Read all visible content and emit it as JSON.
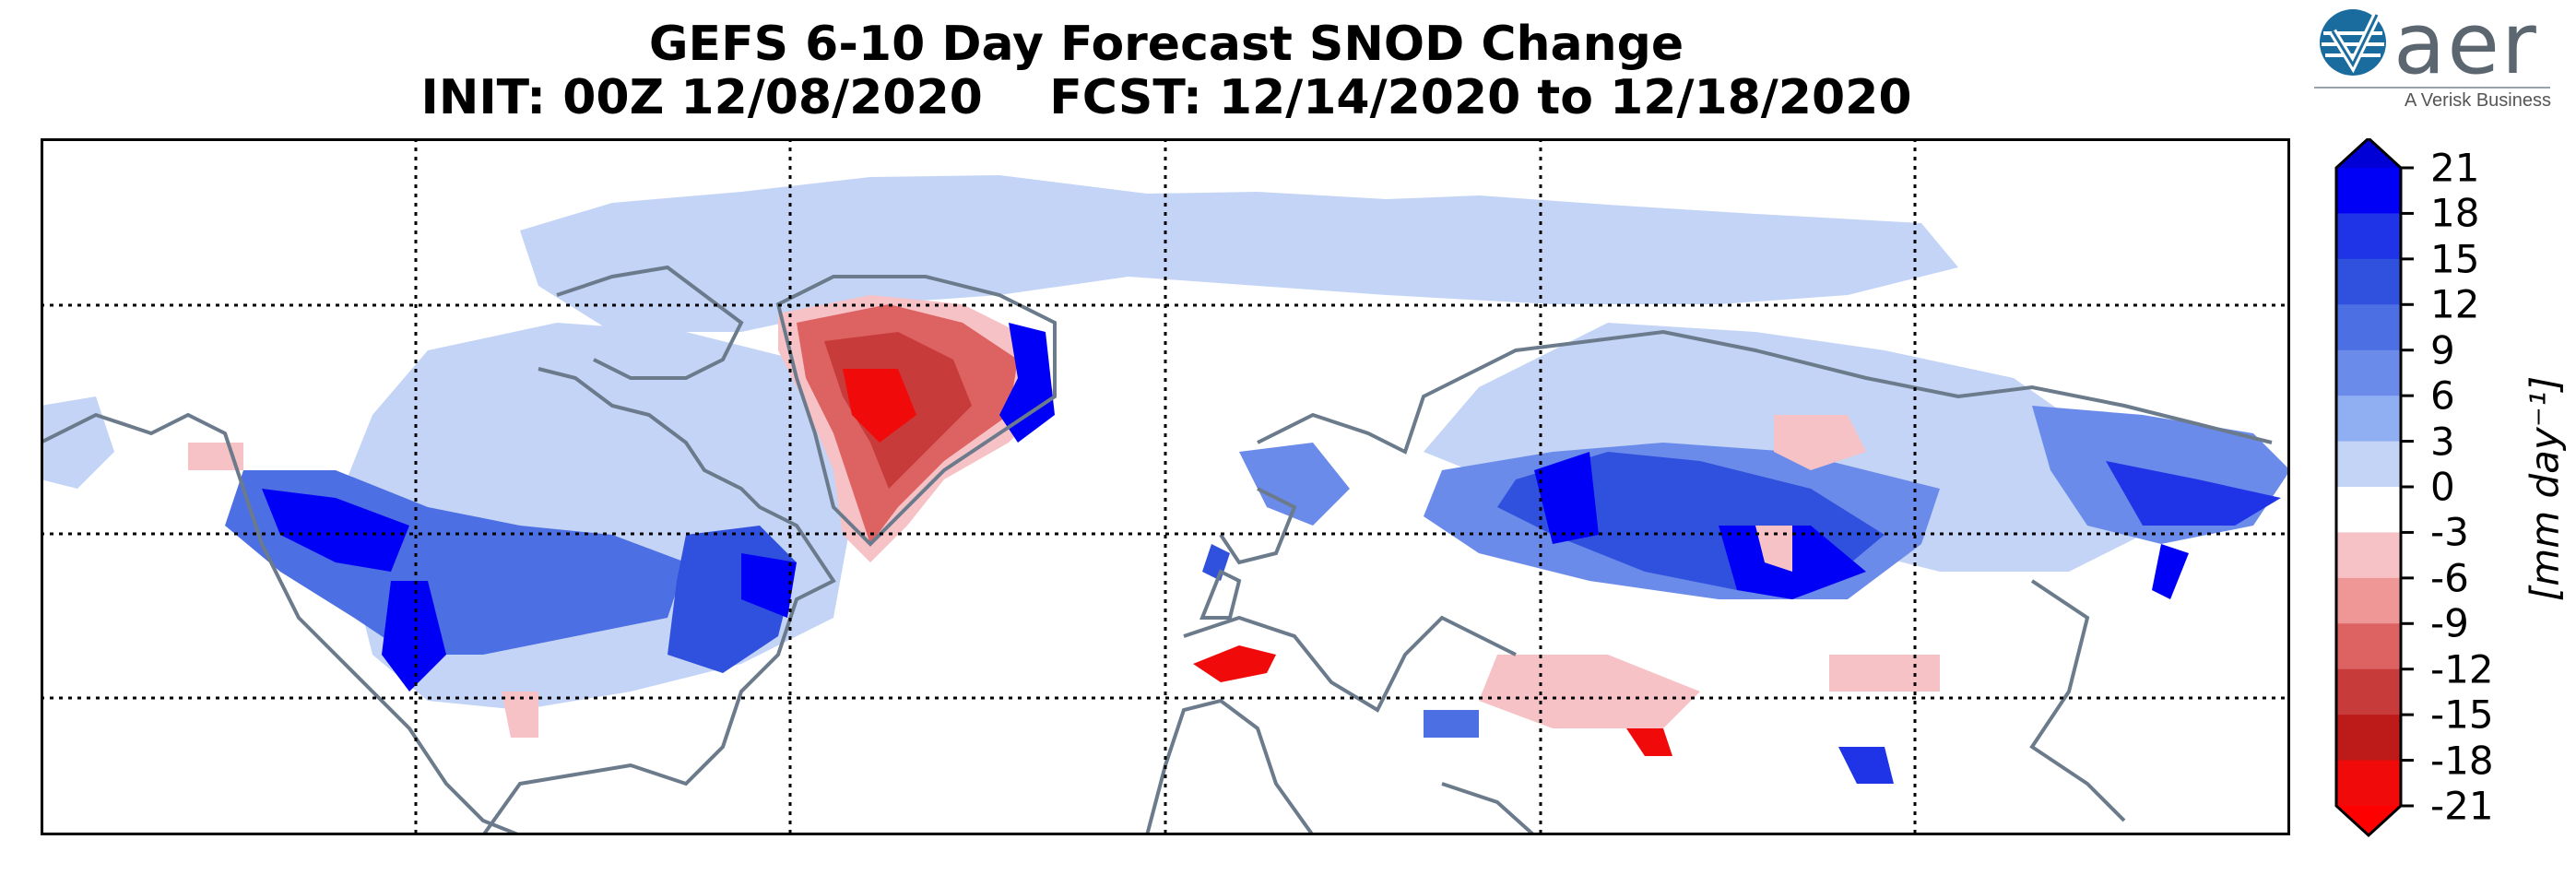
{
  "title_line1": "GEFS 6-10 Day Forecast SNOD Change",
  "title_line2": "INIT: 00Z 12/08/2020    FCST: 12/14/2020 to 12/18/2020",
  "logo": {
    "wordmark": "aer",
    "tagline": "A Verisk Business",
    "icon": "aer-logo-globe-icon"
  },
  "colorbar": {
    "label": "[mm day⁻¹]",
    "ticks": [
      "21",
      "18",
      "15",
      "12",
      "9",
      "6",
      "3",
      "0",
      "-3",
      "-6",
      "-9",
      "-12",
      "-15",
      "-18",
      "-21"
    ],
    "levels": [
      {
        "min": 18,
        "max": 21,
        "color": "#0000f6"
      },
      {
        "min": 15,
        "max": 18,
        "color": "#1e34e6"
      },
      {
        "min": 12,
        "max": 15,
        "color": "#3051dd"
      },
      {
        "min": 9,
        "max": 12,
        "color": "#4c6fe3"
      },
      {
        "min": 6,
        "max": 9,
        "color": "#6b8bea"
      },
      {
        "min": 3,
        "max": 6,
        "color": "#90aef2"
      },
      {
        "min": 0,
        "max": 3,
        "color": "#c3d4f6"
      },
      {
        "min": -3,
        "max": 0,
        "color": "#ffffff"
      },
      {
        "min": -6,
        "max": -3,
        "color": "#f6c2c6"
      },
      {
        "min": -9,
        "max": -6,
        "color": "#ef9697"
      },
      {
        "min": -12,
        "max": -9,
        "color": "#dd6262"
      },
      {
        "min": -15,
        "max": -12,
        "color": "#c83b3b"
      },
      {
        "min": -18,
        "max": -15,
        "color": "#bd1a1a"
      },
      {
        "min": -21,
        "max": -18,
        "color": "#f00a0a"
      }
    ],
    "extend_high_color": "#0000d6",
    "extend_low_color": "#ff0000"
  },
  "map": {
    "coastline_color": "#6b7b8c",
    "gridline_style": "dotted black",
    "grid_meridians": 5,
    "grid_parallels": 3
  }
}
